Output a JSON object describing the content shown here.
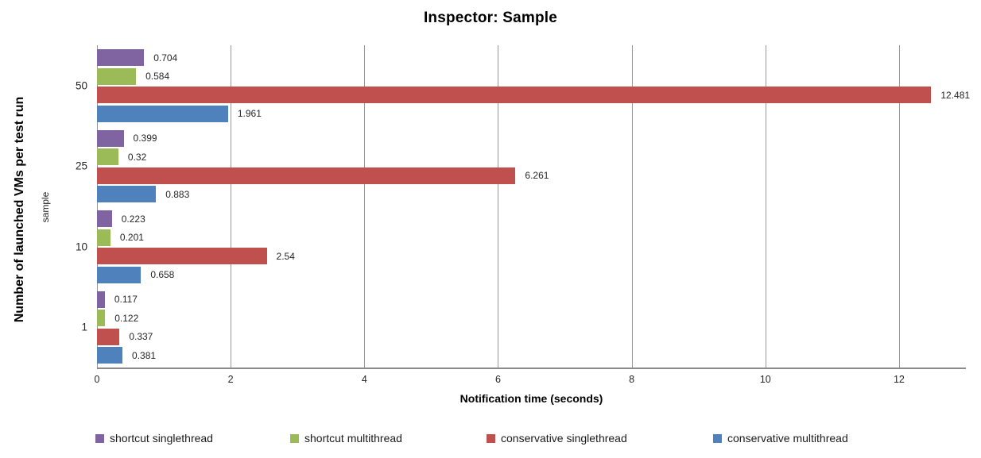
{
  "chart_data": {
    "type": "bar",
    "orientation": "horizontal",
    "title": "Inspector: Sample",
    "xlabel": "Notification time (seconds)",
    "ylabel": "Number of launched VMs per test run",
    "ylabel_secondary": "sample",
    "categories": [
      "50",
      "25",
      "10",
      "1"
    ],
    "series": [
      {
        "name": "shortcut singlethread",
        "color": "#8064A2",
        "values": [
          0.704,
          0.399,
          0.223,
          0.117
        ],
        "labels": [
          "0.704",
          "0.399",
          "0.223",
          "0.117"
        ]
      },
      {
        "name": "shortcut multithread",
        "color": "#9BBB59",
        "values": [
          0.584,
          0.32,
          0.201,
          0.122
        ],
        "labels": [
          "0.584",
          "0.32",
          "0.201",
          "0.122"
        ]
      },
      {
        "name": "conservative singlethread",
        "color": "#C0504D",
        "values": [
          12.481,
          6.261,
          2.54,
          0.337
        ],
        "labels": [
          "12.481",
          "6.261",
          "2.54",
          "0.337"
        ]
      },
      {
        "name": "conservative multithread",
        "color": "#4F81BD",
        "values": [
          1.961,
          0.883,
          0.658,
          0.381
        ],
        "labels": [
          "1.961",
          "0.883",
          "0.658",
          "0.381"
        ]
      }
    ],
    "x_ticks": [
      0,
      2,
      4,
      6,
      8,
      10,
      12
    ],
    "xlim": [
      0,
      13
    ],
    "grid": true,
    "legend_position": "bottom",
    "colors": {
      "gridline": "#979797",
      "axis_line": "#8a8a8a",
      "text": "#262626"
    }
  }
}
